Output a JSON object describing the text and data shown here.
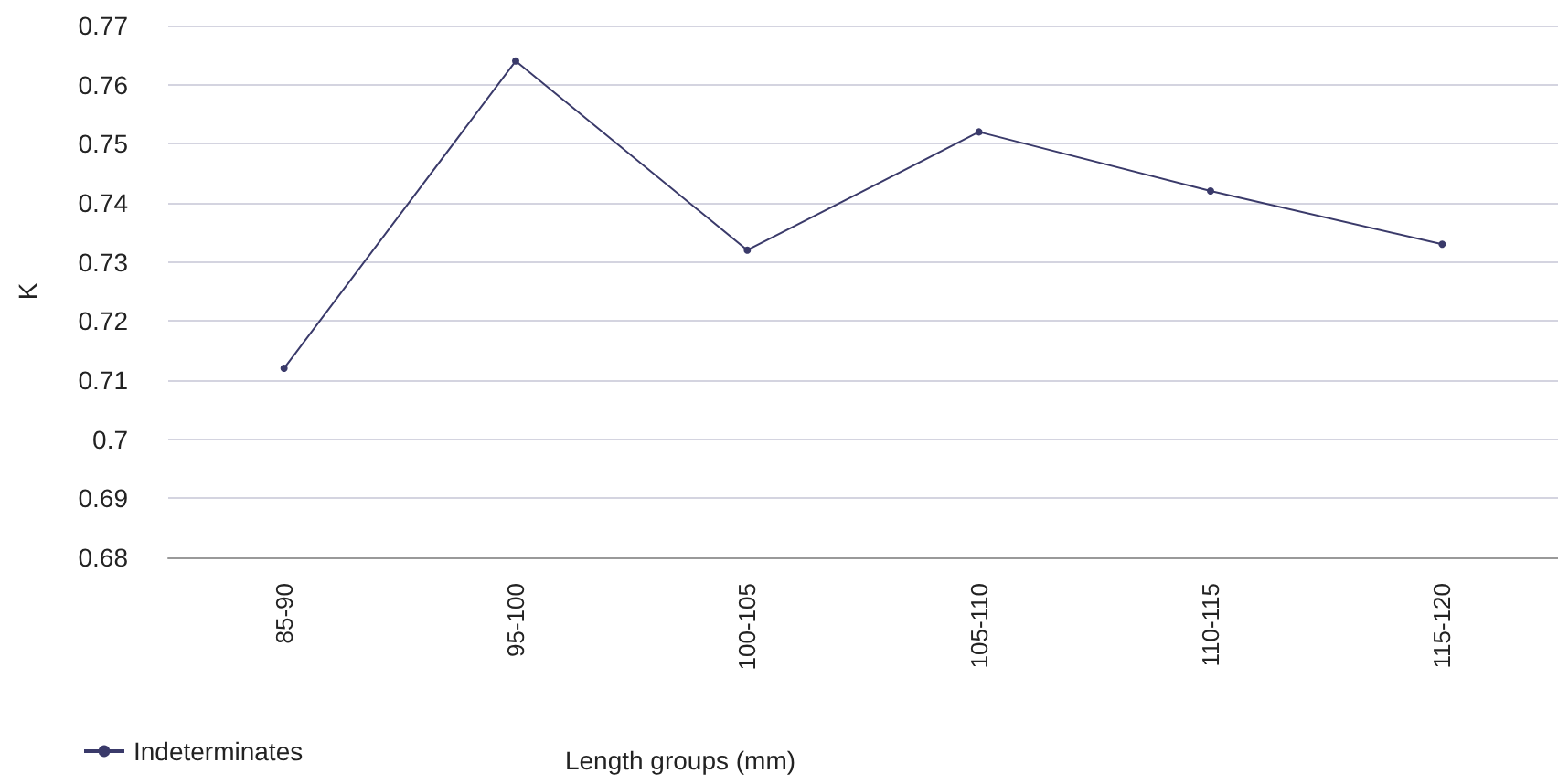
{
  "chart_data": {
    "type": "line",
    "xlabel": "Length groups (mm)",
    "ylabel": "K",
    "categories": [
      "85-90",
      "95-100",
      "100-105",
      "105-110",
      "110-115",
      "115-120"
    ],
    "series": [
      {
        "name": "Indeterminates",
        "color": "#3a3a6a",
        "values": [
          0.712,
          0.764,
          0.732,
          0.752,
          0.742,
          0.733
        ]
      }
    ],
    "ylim": [
      0.68,
      0.77
    ],
    "yticks": [
      0.68,
      0.69,
      0.7,
      0.71,
      0.72,
      0.73,
      0.74,
      0.75,
      0.76,
      0.77
    ],
    "grid": "y",
    "legend": "bottom left",
    "marker": "circle",
    "line_style": "solid"
  }
}
